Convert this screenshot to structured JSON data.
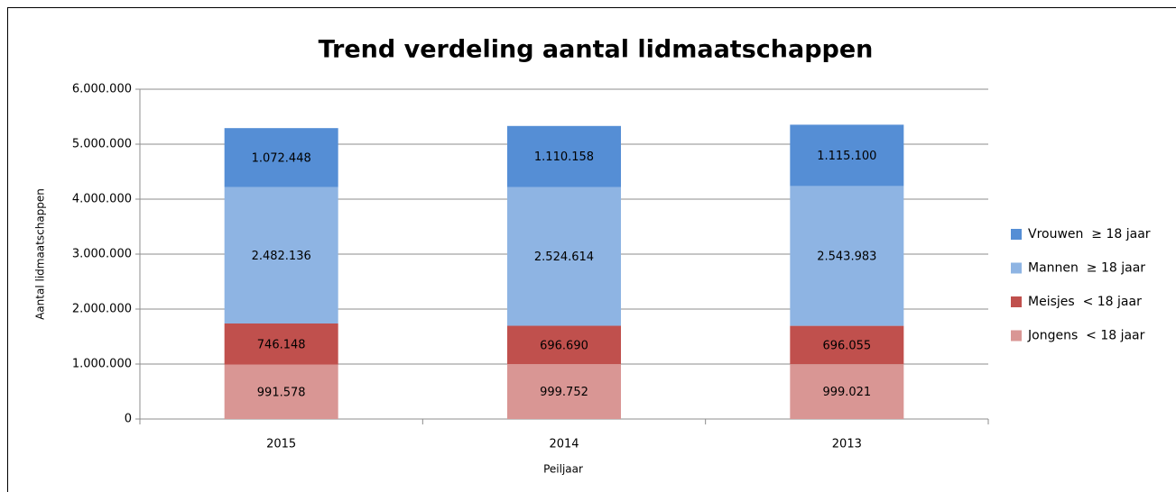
{
  "chart_data": {
    "type": "stacked_bar",
    "title": "Trend verdeling aantal lidmaatschappen",
    "x_label": "Peiljaar",
    "y_label": "Aantal lidmaatschappen",
    "categories": [
      "2015",
      "2014",
      "2013"
    ],
    "series": [
      {
        "name": "Jongens  < 18 jaar",
        "color": "#d99694",
        "values": [
          991578,
          999752,
          999021
        ],
        "value_labels": [
          "991.578",
          "999.752",
          "999.021"
        ]
      },
      {
        "name": "Meisjes  < 18 jaar",
        "color": "#c0504d",
        "values": [
          746148,
          696690,
          696055
        ],
        "value_labels": [
          "746.148",
          "696.690",
          "696.055"
        ]
      },
      {
        "name": "Mannen  ≥ 18 jaar",
        "color": "#8eb4e3",
        "values": [
          2482136,
          2524614,
          2543983
        ],
        "value_labels": [
          "2.482.136",
          "2.524.614",
          "2.543.983"
        ]
      },
      {
        "name": "Vrouwen  ≥ 18 jaar",
        "color": "#558ed5",
        "values": [
          1072448,
          1110158,
          1115100
        ],
        "value_labels": [
          "1.072.448",
          "1.110.158",
          "1.115.100"
        ]
      }
    ],
    "ylim": [
      0,
      6000000
    ],
    "yticks": [
      0,
      {
        "value": 1000000,
        "label": "1.000.000"
      },
      {
        "value": 2000000,
        "label": "2.000.000"
      },
      {
        "value": 3000000,
        "label": "3.000.000"
      },
      {
        "value": 4000000,
        "label": "4.000.000"
      },
      {
        "value": 5000000,
        "label": "5.000.000"
      },
      {
        "value": 6000000,
        "label": "6.000.000"
      }
    ],
    "grid": true,
    "legend": "right"
  }
}
